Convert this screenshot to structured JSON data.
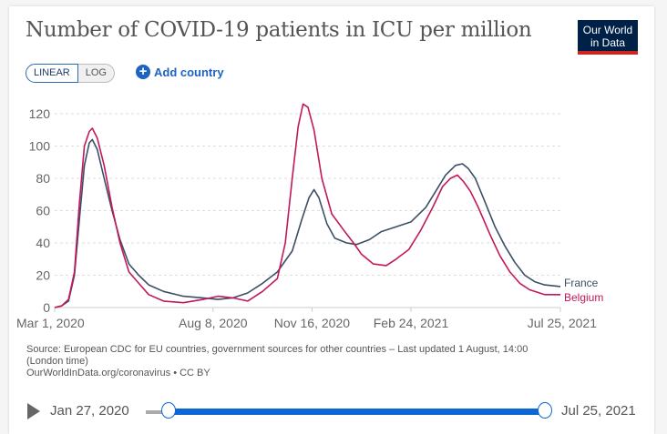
{
  "title": "Number of COVID-19 patients in ICU per million",
  "logo": {
    "line1": "Our World",
    "line2": "in Data"
  },
  "controls": {
    "linear_label": "LINEAR",
    "log_label": "LOG",
    "add_country_label": "Add country",
    "active_scale": "LINEAR"
  },
  "colors": {
    "france": "#3c4e66",
    "belgium": "#c2185b",
    "accent": "#0b66d6",
    "grid": "#ddd"
  },
  "chart_data": {
    "type": "line",
    "title": "Number of COVID-19 patients in ICU per million",
    "xlabel": "",
    "ylabel": "",
    "ylim": [
      0,
      120
    ],
    "yticks": [
      0,
      20,
      40,
      60,
      80,
      100,
      120
    ],
    "xticks": [
      {
        "day": 0,
        "label": "Mar 1, 2020"
      },
      {
        "day": 160,
        "label": "Aug 8, 2020"
      },
      {
        "day": 260,
        "label": "Nov 16, 2020"
      },
      {
        "day": 360,
        "label": "Feb 24, 2021"
      },
      {
        "day": 511,
        "label": "Jul 25, 2021"
      }
    ],
    "x_unit": "days since Mar 1, 2020",
    "xlim": [
      0,
      511
    ],
    "grid": true,
    "legend": "inline-right",
    "series": [
      {
        "name": "France",
        "color": "#3c4e66",
        "points": [
          [
            0,
            0
          ],
          [
            7,
            1
          ],
          [
            14,
            4
          ],
          [
            20,
            20
          ],
          [
            25,
            55
          ],
          [
            30,
            88
          ],
          [
            35,
            102
          ],
          [
            38,
            104
          ],
          [
            43,
            98
          ],
          [
            50,
            80
          ],
          [
            58,
            60
          ],
          [
            66,
            42
          ],
          [
            75,
            27
          ],
          [
            85,
            20
          ],
          [
            95,
            14
          ],
          [
            110,
            10
          ],
          [
            130,
            7
          ],
          [
            150,
            6
          ],
          [
            165,
            5
          ],
          [
            180,
            6
          ],
          [
            195,
            9
          ],
          [
            210,
            15
          ],
          [
            225,
            22
          ],
          [
            240,
            35
          ],
          [
            250,
            55
          ],
          [
            257,
            68
          ],
          [
            262,
            73
          ],
          [
            267,
            68
          ],
          [
            275,
            52
          ],
          [
            283,
            43
          ],
          [
            295,
            40
          ],
          [
            305,
            39
          ],
          [
            318,
            42
          ],
          [
            330,
            47
          ],
          [
            345,
            50
          ],
          [
            360,
            53
          ],
          [
            375,
            62
          ],
          [
            385,
            72
          ],
          [
            395,
            82
          ],
          [
            405,
            88
          ],
          [
            412,
            89
          ],
          [
            418,
            86
          ],
          [
            425,
            80
          ],
          [
            435,
            65
          ],
          [
            445,
            50
          ],
          [
            455,
            38
          ],
          [
            465,
            28
          ],
          [
            475,
            20
          ],
          [
            485,
            16
          ],
          [
            495,
            14
          ],
          [
            511,
            13
          ]
        ]
      },
      {
        "name": "Belgium",
        "color": "#c2185b",
        "points": [
          [
            0,
            0
          ],
          [
            7,
            1
          ],
          [
            14,
            5
          ],
          [
            20,
            22
          ],
          [
            25,
            65
          ],
          [
            30,
            100
          ],
          [
            35,
            109
          ],
          [
            38,
            111
          ],
          [
            43,
            105
          ],
          [
            50,
            88
          ],
          [
            58,
            62
          ],
          [
            66,
            40
          ],
          [
            75,
            22
          ],
          [
            85,
            15
          ],
          [
            95,
            8
          ],
          [
            110,
            4
          ],
          [
            130,
            3
          ],
          [
            150,
            5
          ],
          [
            165,
            7
          ],
          [
            180,
            6
          ],
          [
            195,
            4
          ],
          [
            210,
            10
          ],
          [
            225,
            18
          ],
          [
            233,
            40
          ],
          [
            240,
            80
          ],
          [
            246,
            112
          ],
          [
            251,
            126
          ],
          [
            256,
            124
          ],
          [
            262,
            110
          ],
          [
            270,
            80
          ],
          [
            280,
            58
          ],
          [
            292,
            48
          ],
          [
            302,
            40
          ],
          [
            310,
            33
          ],
          [
            322,
            27
          ],
          [
            335,
            26
          ],
          [
            345,
            30
          ],
          [
            358,
            36
          ],
          [
            370,
            48
          ],
          [
            382,
            62
          ],
          [
            392,
            75
          ],
          [
            400,
            80
          ],
          [
            407,
            82
          ],
          [
            413,
            78
          ],
          [
            420,
            72
          ],
          [
            428,
            62
          ],
          [
            440,
            45
          ],
          [
            450,
            32
          ],
          [
            460,
            22
          ],
          [
            470,
            15
          ],
          [
            480,
            11
          ],
          [
            495,
            8
          ],
          [
            511,
            8
          ]
        ]
      }
    ]
  },
  "source": {
    "line1": "Source: European CDC for EU countries, government sources for other countries – Last updated 1 August, 14:00",
    "line2": "(London time)",
    "line3": "OurWorldInData.org/coronavirus • CC BY"
  },
  "timeline": {
    "start_label": "Jan 27, 2020",
    "end_label": "Jul 25, 2021"
  }
}
